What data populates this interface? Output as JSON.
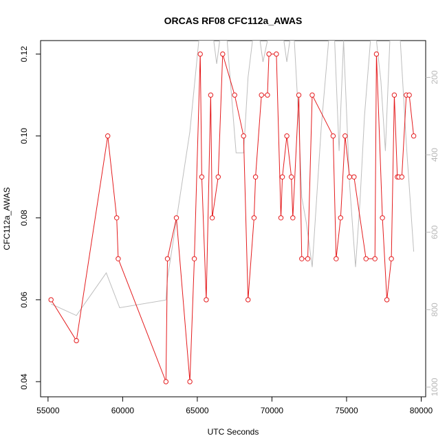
{
  "chart_data": {
    "type": "line",
    "title": "ORCAS RF08 CFC112a_AWAS",
    "xlabel": "UTC Seconds",
    "ylabel": "CFC112a_AWAS",
    "xlim": [
      54500,
      80300
    ],
    "ylim": [
      0.0363,
      0.1233
    ],
    "x_ticks": [
      "55000",
      "60000",
      "65000",
      "70000",
      "75000",
      "80000"
    ],
    "y_ticks": [
      "0.04",
      "0.06",
      "0.08",
      "0.10",
      "0.12"
    ],
    "secondary_axis": {
      "ylim_top_to_bottom": [
        105,
        1025
      ],
      "ticks": [
        "200",
        "400",
        "600",
        "800",
        "1000"
      ],
      "color": "#b8b8b8"
    },
    "series": [
      {
        "role": "primary",
        "color": "#e41a1c",
        "markers": "open-circle",
        "points": [
          [
            55200,
            0.06
          ],
          [
            56900,
            0.05
          ],
          [
            59000,
            0.1
          ],
          [
            59600,
            0.08
          ],
          [
            59700,
            0.07
          ],
          [
            62900,
            0.04
          ],
          [
            63000,
            0.07
          ],
          [
            63600,
            0.08
          ],
          [
            64500,
            0.04
          ],
          [
            64800,
            0.07
          ],
          [
            65200,
            0.12
          ],
          [
            65300,
            0.09
          ],
          [
            65600,
            0.06
          ],
          [
            65900,
            0.11
          ],
          [
            66000,
            0.08
          ],
          [
            66400,
            0.09
          ],
          [
            66700,
            0.12
          ],
          [
            67500,
            0.11
          ],
          [
            68100,
            0.1
          ],
          [
            68400,
            0.06
          ],
          [
            68800,
            0.08
          ],
          [
            68900,
            0.09
          ],
          [
            69300,
            0.11
          ],
          [
            69700,
            0.11
          ],
          [
            69800,
            0.12
          ],
          [
            70300,
            0.12
          ],
          [
            70600,
            0.08
          ],
          [
            70700,
            0.09
          ],
          [
            71000,
            0.1
          ],
          [
            71300,
            0.09
          ],
          [
            71400,
            0.08
          ],
          [
            71800,
            0.11
          ],
          [
            72000,
            0.07
          ],
          [
            72400,
            0.07
          ],
          [
            72700,
            0.11
          ],
          [
            74100,
            0.1
          ],
          [
            74300,
            0.07
          ],
          [
            74600,
            0.08
          ],
          [
            74900,
            0.1
          ],
          [
            75200,
            0.09
          ],
          [
            75500,
            0.09
          ],
          [
            76300,
            0.07
          ],
          [
            76900,
            0.07
          ],
          [
            77000,
            0.12
          ],
          [
            77400,
            0.08
          ],
          [
            77700,
            0.06
          ],
          [
            78000,
            0.07
          ],
          [
            78200,
            0.11
          ],
          [
            78400,
            0.09
          ],
          [
            78500,
            0.09
          ],
          [
            78700,
            0.09
          ],
          [
            79000,
            0.11
          ],
          [
            79200,
            0.11
          ],
          [
            79500,
            0.1
          ]
        ]
      },
      {
        "role": "secondary",
        "color": "#bdbdbd",
        "markers": "none",
        "points": [
          [
            55200,
            785
          ],
          [
            56900,
            815
          ],
          [
            58900,
            705
          ],
          [
            59800,
            795
          ],
          [
            62900,
            775
          ],
          [
            63000,
            720
          ],
          [
            64500,
            340
          ],
          [
            65100,
            105
          ],
          [
            65800,
            105
          ],
          [
            66100,
            105
          ],
          [
            66300,
            165
          ],
          [
            66500,
            105
          ],
          [
            67000,
            105
          ],
          [
            67600,
            395
          ],
          [
            68100,
            395
          ],
          [
            68400,
            200
          ],
          [
            68700,
            105
          ],
          [
            69200,
            105
          ],
          [
            69400,
            160
          ],
          [
            69700,
            105
          ],
          [
            70200,
            105
          ],
          [
            70500,
            105
          ],
          [
            70800,
            105
          ],
          [
            71000,
            160
          ],
          [
            71200,
            105
          ],
          [
            71500,
            105
          ],
          [
            71800,
            315
          ],
          [
            72000,
            510
          ],
          [
            72300,
            575
          ],
          [
            72700,
            690
          ],
          [
            73300,
            330
          ],
          [
            73800,
            105
          ],
          [
            74200,
            105
          ],
          [
            74500,
            390
          ],
          [
            74800,
            105
          ],
          [
            75200,
            475
          ],
          [
            75600,
            690
          ],
          [
            75900,
            520
          ],
          [
            76200,
            300
          ],
          [
            76600,
            105
          ],
          [
            77000,
            105
          ],
          [
            77300,
            210
          ],
          [
            77600,
            390
          ],
          [
            77900,
            105
          ],
          [
            78400,
            105
          ],
          [
            78600,
            105
          ],
          [
            79000,
            370
          ],
          [
            79500,
            650
          ]
        ]
      }
    ]
  }
}
